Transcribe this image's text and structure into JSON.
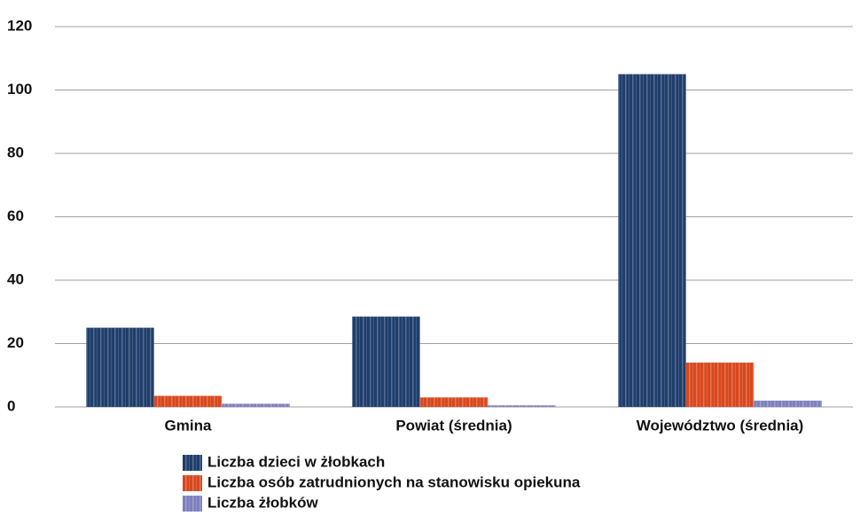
{
  "chart_data": {
    "type": "bar",
    "categories": [
      "Gmina",
      "Powiat (średnia)",
      "Województwo (średnia)"
    ],
    "series": [
      {
        "name": "Liczba dzieci w żłobkach",
        "color": "#1f3e6c",
        "values": [
          25,
          28.5,
          105
        ]
      },
      {
        "name": "Liczba osób zatrudnionych na stanowisku opiekuna",
        "color": "#d8481e",
        "values": [
          3.5,
          3,
          14
        ]
      },
      {
        "name": "Liczba żłobków",
        "color": "#7f7fbf",
        "values": [
          1,
          0.5,
          2
        ]
      }
    ],
    "ylim": [
      0,
      120
    ],
    "yticks": [
      0,
      20,
      40,
      60,
      80,
      100,
      120
    ],
    "grid": true,
    "legend": "bottom"
  }
}
